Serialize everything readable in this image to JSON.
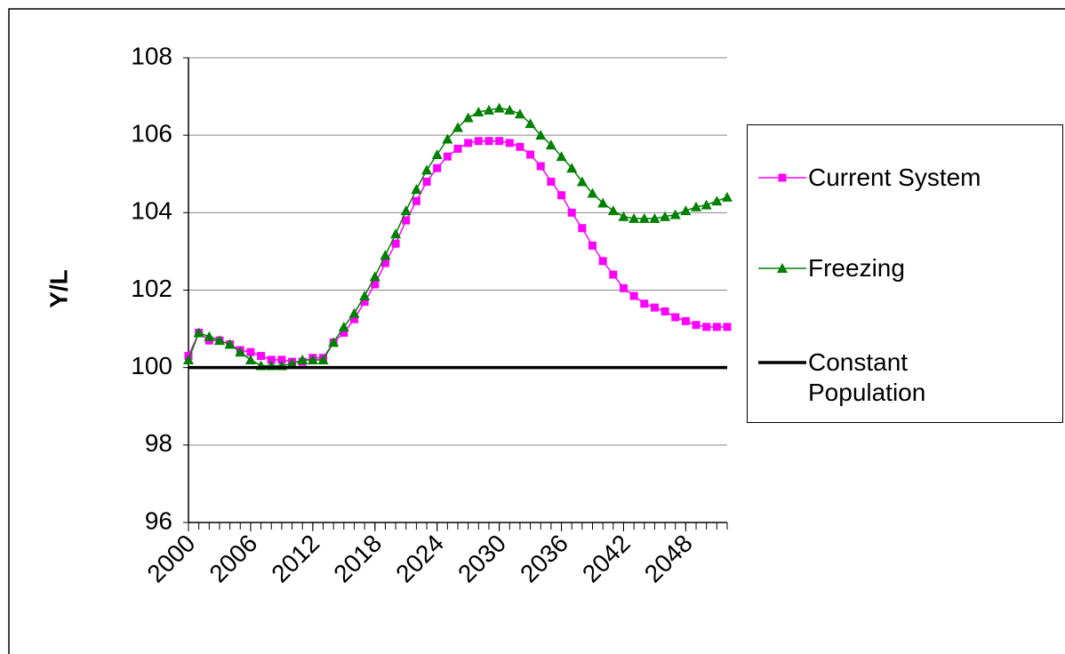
{
  "chart_data": {
    "type": "line",
    "y_label": "Y/L",
    "x": [
      2000,
      2001,
      2002,
      2003,
      2004,
      2005,
      2006,
      2007,
      2008,
      2009,
      2010,
      2011,
      2012,
      2013,
      2014,
      2015,
      2016,
      2017,
      2018,
      2019,
      2020,
      2021,
      2022,
      2023,
      2024,
      2025,
      2026,
      2027,
      2028,
      2029,
      2030,
      2031,
      2032,
      2033,
      2034,
      2035,
      2036,
      2037,
      2038,
      2039,
      2040,
      2041,
      2042,
      2043,
      2044,
      2045,
      2046,
      2047,
      2048,
      2049,
      2050,
      2051,
      2052
    ],
    "xlim": [
      2000,
      2052
    ],
    "xticks": [
      2000,
      2006,
      2012,
      2018,
      2024,
      2030,
      2036,
      2042,
      2048
    ],
    "ylim": [
      96,
      108
    ],
    "yticks": [
      96,
      98,
      100,
      102,
      104,
      106,
      108
    ],
    "grid": true,
    "legend": "right",
    "series": [
      {
        "name": "Current System",
        "color": "#ff00ff",
        "marker": "square",
        "values": [
          100.3,
          100.9,
          100.7,
          100.7,
          100.6,
          100.45,
          100.4,
          100.3,
          100.2,
          100.2,
          100.15,
          100.15,
          100.25,
          100.25,
          100.65,
          100.9,
          101.25,
          101.7,
          102.15,
          102.7,
          103.2,
          103.8,
          104.3,
          104.8,
          105.15,
          105.45,
          105.65,
          105.8,
          105.85,
          105.85,
          105.85,
          105.8,
          105.7,
          105.5,
          105.2,
          104.8,
          104.45,
          104.0,
          103.6,
          103.15,
          102.75,
          102.4,
          102.05,
          101.85,
          101.65,
          101.55,
          101.45,
          101.3,
          101.2,
          101.1,
          101.05,
          101.05,
          101.05
        ]
      },
      {
        "name": "Freezing",
        "color": "#008000",
        "marker": "triangle",
        "values": [
          100.2,
          100.9,
          100.8,
          100.7,
          100.6,
          100.4,
          100.2,
          100.05,
          100.05,
          100.05,
          100.1,
          100.2,
          100.2,
          100.2,
          100.65,
          101.05,
          101.4,
          101.85,
          102.35,
          102.9,
          103.45,
          104.05,
          104.6,
          105.1,
          105.5,
          105.9,
          106.2,
          106.45,
          106.6,
          106.65,
          106.7,
          106.65,
          106.55,
          106.3,
          106.0,
          105.75,
          105.45,
          105.15,
          104.8,
          104.5,
          104.25,
          104.05,
          103.9,
          103.85,
          103.85,
          103.85,
          103.9,
          103.95,
          104.05,
          104.15,
          104.2,
          104.3,
          104.4
        ]
      },
      {
        "name": "Constant Population",
        "color": "#000000",
        "marker": "none",
        "values": [
          100,
          100,
          100,
          100,
          100,
          100,
          100,
          100,
          100,
          100,
          100,
          100,
          100,
          100,
          100,
          100,
          100,
          100,
          100,
          100,
          100,
          100,
          100,
          100,
          100,
          100,
          100,
          100,
          100,
          100,
          100,
          100,
          100,
          100,
          100,
          100,
          100,
          100,
          100,
          100,
          100,
          100,
          100,
          100,
          100,
          100,
          100,
          100,
          100,
          100,
          100,
          100,
          100
        ]
      }
    ]
  }
}
